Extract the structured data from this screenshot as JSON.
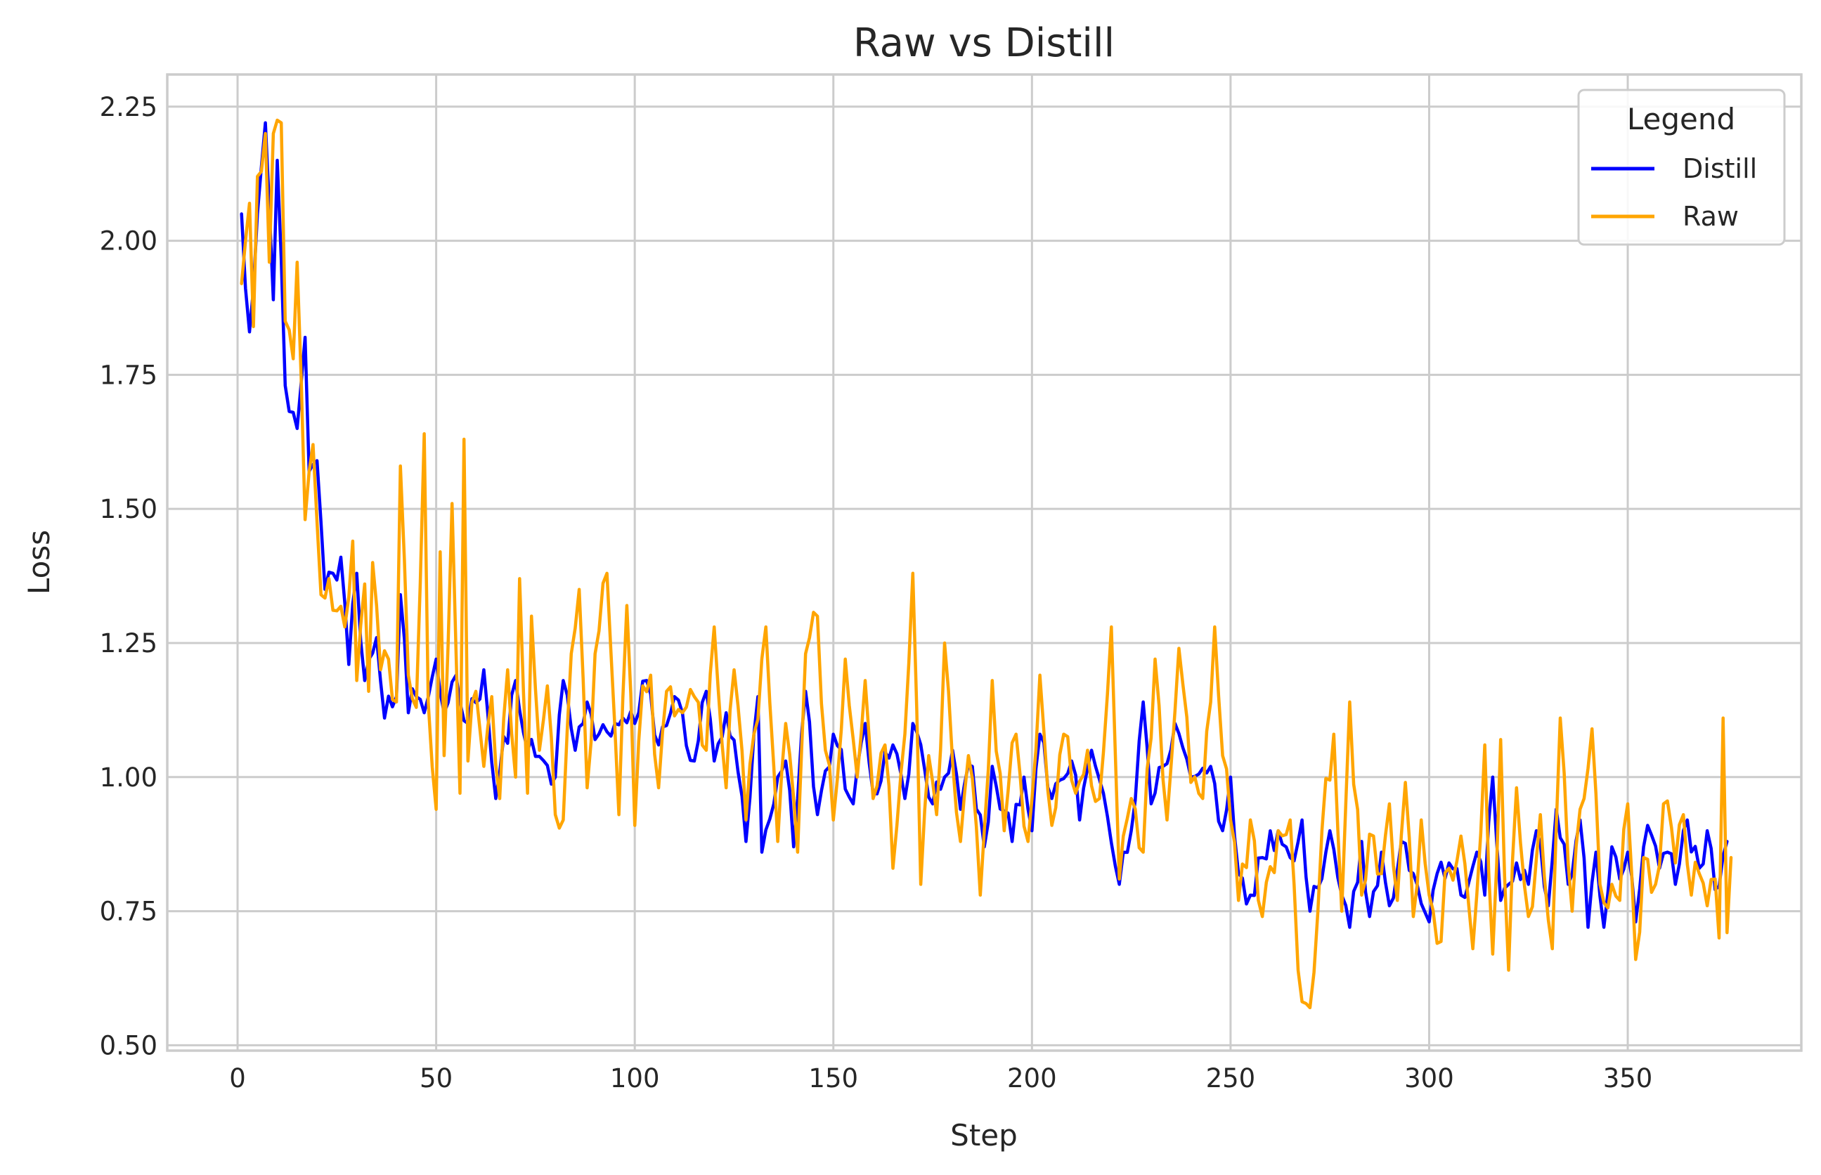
{
  "chart_data": {
    "type": "line",
    "title": "Raw vs Distill",
    "xlabel": "Step",
    "ylabel": "Loss",
    "xlim": [
      -17.7,
      393.7
    ],
    "ylim": [
      0.49,
      2.31
    ],
    "xticks": [
      0,
      50,
      100,
      150,
      200,
      250,
      300,
      350
    ],
    "yticks": [
      0.5,
      0.75,
      1.0,
      1.25,
      1.5,
      1.75,
      2.0,
      2.25
    ],
    "ytick_labels": [
      "0.50",
      "0.75",
      "1.00",
      "1.25",
      "1.50",
      "1.75",
      "2.00",
      "2.25"
    ],
    "grid": true,
    "legend": {
      "title": "Legend",
      "placement": "top-right"
    },
    "series": [
      {
        "name": "Distill",
        "color": "#0000ff",
        "anchors": [
          [
            1,
            2.05
          ],
          [
            3,
            1.83
          ],
          [
            5,
            2.05
          ],
          [
            7,
            2.22
          ],
          [
            9,
            1.89
          ],
          [
            10,
            2.15
          ],
          [
            12,
            1.73
          ],
          [
            14,
            1.68
          ],
          [
            15,
            1.65
          ],
          [
            17,
            1.82
          ],
          [
            18,
            1.57
          ],
          [
            20,
            1.59
          ],
          [
            22,
            1.35
          ],
          [
            24,
            1.38
          ],
          [
            26,
            1.41
          ],
          [
            28,
            1.21
          ],
          [
            30,
            1.38
          ],
          [
            32,
            1.18
          ],
          [
            35,
            1.26
          ],
          [
            37,
            1.11
          ],
          [
            40,
            1.15
          ],
          [
            41,
            1.34
          ],
          [
            43,
            1.12
          ],
          [
            45,
            1.15
          ],
          [
            47,
            1.12
          ],
          [
            50,
            1.22
          ],
          [
            52,
            1.12
          ],
          [
            55,
            1.19
          ],
          [
            58,
            1.1
          ],
          [
            62,
            1.2
          ],
          [
            65,
            0.96
          ],
          [
            70,
            1.18
          ],
          [
            73,
            1.05
          ],
          [
            80,
            1.0
          ],
          [
            82,
            1.18
          ],
          [
            85,
            1.05
          ],
          [
            88,
            1.14
          ],
          [
            90,
            1.07
          ],
          [
            95,
            1.1
          ],
          [
            100,
            1.1
          ],
          [
            103,
            1.18
          ],
          [
            106,
            1.06
          ],
          [
            110,
            1.15
          ],
          [
            115,
            1.03
          ],
          [
            118,
            1.16
          ],
          [
            120,
            1.03
          ],
          [
            123,
            1.12
          ],
          [
            126,
            1.01
          ],
          [
            128,
            0.88
          ],
          [
            131,
            1.15
          ],
          [
            132,
            0.86
          ],
          [
            135,
            0.95
          ],
          [
            138,
            1.03
          ],
          [
            140,
            0.87
          ],
          [
            143,
            1.16
          ],
          [
            146,
            0.93
          ],
          [
            150,
            1.08
          ],
          [
            155,
            0.95
          ],
          [
            158,
            1.1
          ],
          [
            160,
            0.97
          ],
          [
            165,
            1.06
          ],
          [
            168,
            0.96
          ],
          [
            170,
            1.1
          ],
          [
            175,
            0.95
          ],
          [
            178,
            1.0
          ],
          [
            180,
            1.05
          ],
          [
            182,
            0.94
          ],
          [
            185,
            1.02
          ],
          [
            188,
            0.87
          ],
          [
            190,
            1.02
          ],
          [
            195,
            0.88
          ],
          [
            198,
            1.0
          ],
          [
            200,
            0.9
          ],
          [
            202,
            1.08
          ],
          [
            205,
            0.96
          ],
          [
            210,
            1.03
          ],
          [
            212,
            0.92
          ],
          [
            215,
            1.05
          ],
          [
            218,
            0.97
          ],
          [
            222,
            0.8
          ],
          [
            225,
            0.9
          ],
          [
            228,
            1.14
          ],
          [
            230,
            0.95
          ],
          [
            233,
            1.02
          ],
          [
            236,
            1.1
          ],
          [
            240,
            1.0
          ],
          [
            245,
            1.02
          ],
          [
            248,
            0.9
          ],
          [
            250,
            1.0
          ],
          [
            252,
            0.82
          ],
          [
            255,
            0.78
          ],
          [
            258,
            0.85
          ],
          [
            262,
            0.9
          ],
          [
            265,
            0.85
          ],
          [
            268,
            0.92
          ],
          [
            270,
            0.75
          ],
          [
            275,
            0.9
          ],
          [
            278,
            0.78
          ],
          [
            280,
            0.72
          ],
          [
            283,
            0.88
          ],
          [
            285,
            0.74
          ],
          [
            288,
            0.86
          ],
          [
            290,
            0.76
          ],
          [
            293,
            0.88
          ],
          [
            296,
            0.82
          ],
          [
            300,
            0.73
          ],
          [
            302,
            0.82
          ],
          [
            305,
            0.84
          ],
          [
            308,
            0.78
          ],
          [
            312,
            0.86
          ],
          [
            314,
            0.78
          ],
          [
            316,
            1.0
          ],
          [
            318,
            0.77
          ],
          [
            322,
            0.84
          ],
          [
            325,
            0.8
          ],
          [
            327,
            0.9
          ],
          [
            330,
            0.76
          ],
          [
            332,
            0.94
          ],
          [
            335,
            0.8
          ],
          [
            338,
            0.92
          ],
          [
            340,
            0.72
          ],
          [
            342,
            0.86
          ],
          [
            344,
            0.72
          ],
          [
            346,
            0.87
          ],
          [
            348,
            0.81
          ],
          [
            350,
            0.86
          ],
          [
            352,
            0.73
          ],
          [
            355,
            0.91
          ],
          [
            358,
            0.83
          ],
          [
            360,
            0.86
          ],
          [
            362,
            0.8
          ],
          [
            365,
            0.92
          ],
          [
            368,
            0.83
          ],
          [
            370,
            0.9
          ],
          [
            372,
            0.79
          ],
          [
            375,
            0.88
          ]
        ]
      },
      {
        "name": "Raw",
        "color": "#ffa500",
        "anchors": [
          [
            1,
            1.92
          ],
          [
            3,
            2.07
          ],
          [
            4,
            1.84
          ],
          [
            5,
            2.12
          ],
          [
            7,
            2.2
          ],
          [
            8,
            1.96
          ],
          [
            9,
            2.2
          ],
          [
            11,
            2.22
          ],
          [
            12,
            1.85
          ],
          [
            14,
            1.78
          ],
          [
            15,
            1.96
          ],
          [
            17,
            1.48
          ],
          [
            19,
            1.62
          ],
          [
            21,
            1.34
          ],
          [
            23,
            1.37
          ],
          [
            25,
            1.31
          ],
          [
            27,
            1.28
          ],
          [
            29,
            1.44
          ],
          [
            30,
            1.18
          ],
          [
            32,
            1.36
          ],
          [
            33,
            1.16
          ],
          [
            34,
            1.4
          ],
          [
            36,
            1.2
          ],
          [
            38,
            1.22
          ],
          [
            40,
            1.14
          ],
          [
            41,
            1.58
          ],
          [
            43,
            1.19
          ],
          [
            45,
            1.13
          ],
          [
            47,
            1.64
          ],
          [
            48,
            1.14
          ],
          [
            50,
            0.94
          ],
          [
            51,
            1.42
          ],
          [
            52,
            1.04
          ],
          [
            54,
            1.51
          ],
          [
            56,
            0.97
          ],
          [
            57,
            1.63
          ],
          [
            58,
            1.03
          ],
          [
            60,
            1.16
          ],
          [
            62,
            1.02
          ],
          [
            64,
            1.15
          ],
          [
            66,
            0.96
          ],
          [
            68,
            1.2
          ],
          [
            70,
            1.0
          ],
          [
            71,
            1.37
          ],
          [
            73,
            0.97
          ],
          [
            74,
            1.3
          ],
          [
            76,
            1.05
          ],
          [
            78,
            1.17
          ],
          [
            80,
            0.93
          ],
          [
            82,
            0.92
          ],
          [
            84,
            1.23
          ],
          [
            86,
            1.35
          ],
          [
            88,
            0.98
          ],
          [
            90,
            1.23
          ],
          [
            93,
            1.38
          ],
          [
            96,
            0.93
          ],
          [
            98,
            1.32
          ],
          [
            100,
            0.91
          ],
          [
            102,
            1.17
          ],
          [
            104,
            1.19
          ],
          [
            106,
            0.98
          ],
          [
            108,
            1.16
          ],
          [
            112,
            1.12
          ],
          [
            115,
            1.15
          ],
          [
            118,
            1.05
          ],
          [
            120,
            1.28
          ],
          [
            123,
            0.98
          ],
          [
            125,
            1.2
          ],
          [
            128,
            0.92
          ],
          [
            130,
            1.08
          ],
          [
            133,
            1.28
          ],
          [
            136,
            0.88
          ],
          [
            138,
            1.1
          ],
          [
            141,
            0.86
          ],
          [
            143,
            1.23
          ],
          [
            146,
            1.3
          ],
          [
            148,
            1.05
          ],
          [
            150,
            0.92
          ],
          [
            153,
            1.22
          ],
          [
            156,
            1.0
          ],
          [
            158,
            1.18
          ],
          [
            160,
            0.96
          ],
          [
            163,
            1.06
          ],
          [
            165,
            0.83
          ],
          [
            168,
            1.08
          ],
          [
            170,
            1.38
          ],
          [
            172,
            0.8
          ],
          [
            174,
            1.04
          ],
          [
            176,
            0.93
          ],
          [
            178,
            1.25
          ],
          [
            180,
            1.03
          ],
          [
            182,
            0.88
          ],
          [
            184,
            1.04
          ],
          [
            187,
            0.78
          ],
          [
            190,
            1.18
          ],
          [
            193,
            0.9
          ],
          [
            196,
            1.08
          ],
          [
            199,
            0.88
          ],
          [
            202,
            1.19
          ],
          [
            205,
            0.91
          ],
          [
            208,
            1.08
          ],
          [
            211,
            0.97
          ],
          [
            214,
            1.05
          ],
          [
            217,
            0.96
          ],
          [
            220,
            1.28
          ],
          [
            222,
            0.81
          ],
          [
            225,
            0.96
          ],
          [
            228,
            0.86
          ],
          [
            231,
            1.22
          ],
          [
            234,
            0.92
          ],
          [
            237,
            1.24
          ],
          [
            240,
            0.99
          ],
          [
            243,
            0.96
          ],
          [
            246,
            1.28
          ],
          [
            248,
            1.04
          ],
          [
            250,
            0.92
          ],
          [
            252,
            0.77
          ],
          [
            255,
            0.92
          ],
          [
            258,
            0.74
          ],
          [
            262,
            0.9
          ],
          [
            265,
            0.92
          ],
          [
            267,
            0.64
          ],
          [
            270,
            0.57
          ],
          [
            273,
            0.9
          ],
          [
            276,
            1.08
          ],
          [
            278,
            0.75
          ],
          [
            280,
            1.14
          ],
          [
            283,
            0.78
          ],
          [
            286,
            0.89
          ],
          [
            288,
            0.82
          ],
          [
            290,
            0.95
          ],
          [
            292,
            0.77
          ],
          [
            294,
            0.99
          ],
          [
            296,
            0.74
          ],
          [
            298,
            0.92
          ],
          [
            300,
            0.78
          ],
          [
            302,
            0.69
          ],
          [
            305,
            0.83
          ],
          [
            308,
            0.89
          ],
          [
            311,
            0.68
          ],
          [
            314,
            1.06
          ],
          [
            316,
            0.67
          ],
          [
            318,
            1.07
          ],
          [
            320,
            0.64
          ],
          [
            322,
            0.98
          ],
          [
            325,
            0.74
          ],
          [
            328,
            0.93
          ],
          [
            331,
            0.68
          ],
          [
            333,
            1.11
          ],
          [
            336,
            0.75
          ],
          [
            338,
            0.94
          ],
          [
            341,
            1.09
          ],
          [
            343,
            0.8
          ],
          [
            346,
            0.8
          ],
          [
            348,
            0.77
          ],
          [
            350,
            0.95
          ],
          [
            352,
            0.66
          ],
          [
            354,
            0.85
          ],
          [
            357,
            0.8
          ],
          [
            359,
            0.95
          ],
          [
            362,
            0.84
          ],
          [
            364,
            0.93
          ],
          [
            366,
            0.78
          ],
          [
            368,
            0.82
          ],
          [
            370,
            0.76
          ],
          [
            372,
            0.81
          ],
          [
            373,
            0.7
          ],
          [
            374,
            1.11
          ],
          [
            375,
            0.71
          ],
          [
            376,
            0.85
          ]
        ]
      }
    ]
  }
}
